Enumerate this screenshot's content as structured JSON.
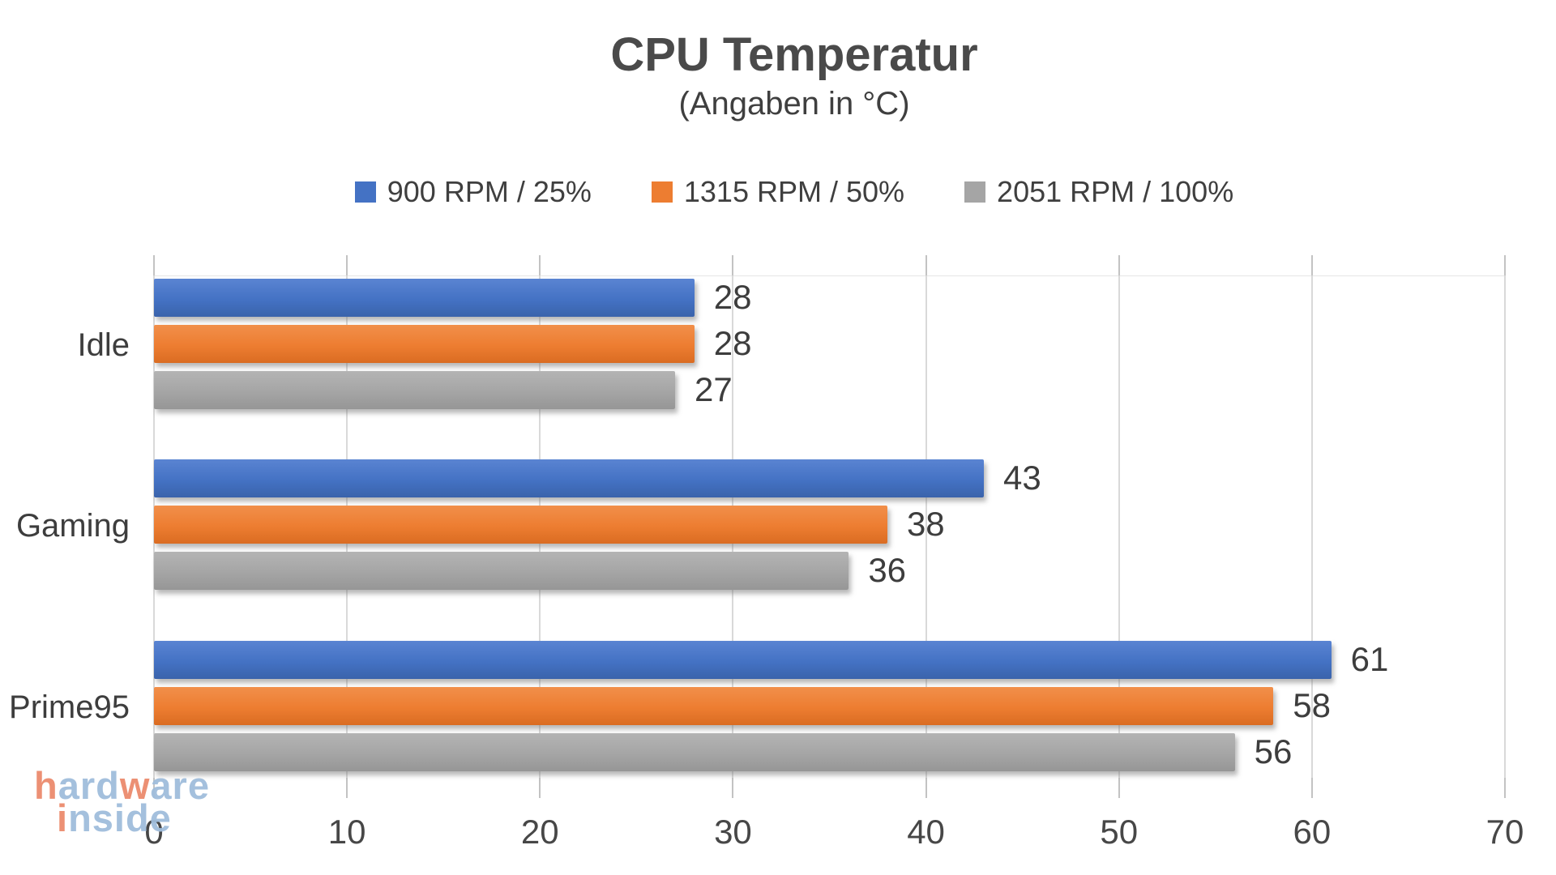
{
  "title": "CPU Temperatur",
  "subtitle": "(Angaben in °C)",
  "chart_data": {
    "type": "bar",
    "orientation": "horizontal",
    "title": "CPU Temperatur",
    "subtitle": "(Angaben in °C)",
    "categories": [
      "Idle",
      "Gaming",
      "Prime95"
    ],
    "series": [
      {
        "name": "900 RPM / 25%",
        "color": "#4472C4",
        "color_light": "#5a84d2",
        "color_dark": "#3a63ab",
        "values": [
          28,
          43,
          61
        ]
      },
      {
        "name": "1315 RPM / 50%",
        "color": "#ED7D31",
        "color_light": "#f18f4a",
        "color_dark": "#da6c22",
        "values": [
          28,
          38,
          58
        ]
      },
      {
        "name": "2051 RPM / 100%",
        "color": "#A5A5A5",
        "color_light": "#b4b4b4",
        "color_dark": "#969696",
        "values": [
          27,
          36,
          56
        ]
      }
    ],
    "xlabel": "",
    "ylabel": "",
    "xlim": [
      0,
      70
    ],
    "x_ticks": [
      0,
      10,
      20,
      30,
      40,
      50,
      60,
      70
    ],
    "grid": "vertical",
    "legend_position": "top-center",
    "data_labels": true,
    "gridline_color": "#d9d9d9"
  },
  "watermark": {
    "line1_parts": [
      {
        "text": "h",
        "color": "#ec8b6d"
      },
      {
        "text": "ard",
        "color": "#a0bddc"
      },
      {
        "text": "w",
        "color": "#ec8b6d"
      },
      {
        "text": "are",
        "color": "#a0bddc"
      }
    ],
    "line2_parts": [
      {
        "text": "i",
        "color": "#ec8b6d"
      },
      {
        "text": "nside",
        "color": "#a0bddc"
      }
    ]
  }
}
